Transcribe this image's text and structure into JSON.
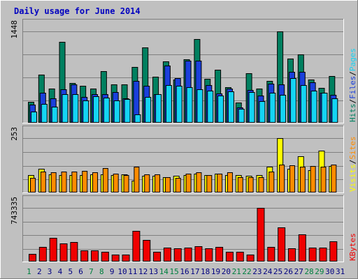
{
  "chart_data": {
    "type": "bar",
    "title": "Daily usage for June 2014",
    "colors": {
      "background": "#c0c0c0",
      "hits": "#008060",
      "files": "#1a3fdc",
      "pages": "#14d4f4",
      "visits": "#ffff00",
      "sites": "#ff8c00",
      "kbytes": "#f00000",
      "weekend_day": "#008040",
      "weekday_day": "#000080",
      "title": "#0000c0"
    },
    "categories": [
      "1",
      "2",
      "3",
      "4",
      "5",
      "6",
      "7",
      "8",
      "9",
      "10",
      "11",
      "12",
      "13",
      "14",
      "15",
      "16",
      "17",
      "18",
      "19",
      "20",
      "21",
      "22",
      "23",
      "24",
      "25",
      "26",
      "27",
      "28",
      "29",
      "30",
      "31"
    ],
    "weekend_days": [
      "1",
      "7",
      "8",
      "14",
      "15",
      "21",
      "22",
      "28",
      "29"
    ],
    "panels": [
      {
        "id": "hits-files-pages",
        "max_label": "1448",
        "ylim": [
          0,
          1448
        ],
        "legend": [
          {
            "text": "Hits",
            "color": "#008060"
          },
          {
            "text": "/",
            "color": "#000000"
          },
          {
            "text": "Files",
            "color": "#1a3fdc"
          },
          {
            "text": "/",
            "color": "#000000"
          },
          {
            "text": "Pages",
            "color": "#14d4f4"
          }
        ],
        "series": [
          {
            "name": "Hits",
            "values": [
              320,
              760,
              540,
              1280,
              620,
              580,
              540,
              810,
              600,
              600,
              880,
              1190,
              720,
              970,
              680,
              1000,
              1330,
              690,
              840,
              560,
              310,
              780,
              530,
              660,
              1448,
              1010,
              1080,
              680,
              550,
              740,
              null
            ]
          },
          {
            "name": "Files",
            "values": [
              280,
              470,
              380,
              520,
              600,
              400,
              450,
              440,
              480,
              380,
              660,
              580,
              450,
              900,
              700,
              980,
              980,
              590,
              460,
              530,
              230,
              510,
              420,
              610,
              600,
              800,
              800,
              630,
              470,
              430,
              null
            ]
          },
          {
            "name": "Pages",
            "values": [
              170,
              290,
              250,
              450,
              440,
              350,
              410,
              390,
              350,
              370,
              120,
              400,
              440,
              590,
              580,
              560,
              520,
              500,
              420,
              490,
              210,
              480,
              330,
              470,
              430,
              700,
              590,
              500,
              470,
              380,
              null
            ]
          }
        ]
      },
      {
        "id": "visits-sites",
        "max_label": "253",
        "ylim": [
          0,
          253
        ],
        "legend": [
          {
            "text": "Visits",
            "color": "#ffff00"
          },
          {
            "text": "/",
            "color": "#000000"
          },
          {
            "text": "Sites",
            "color": "#ff8c00"
          }
        ],
        "series": [
          {
            "name": "Visits",
            "values": [
              78,
              108,
              83,
              80,
              78,
              80,
              83,
              83,
              80,
              83,
              51,
              75,
              75,
              69,
              75,
              80,
              85,
              80,
              85,
              80,
              78,
              75,
              78,
              118,
              253,
              107,
              168,
              103,
              195,
              120,
              null
            ]
          },
          {
            "name": "Sites",
            "values": [
              66,
              95,
              92,
              94,
              94,
              97,
              93,
              113,
              85,
              80,
              117,
              81,
              81,
              69,
              66,
              85,
              92,
              80,
              85,
              92,
              69,
              70,
              70,
              95,
              128,
              124,
              118,
              120,
              118,
              128,
              null
            ]
          }
        ]
      },
      {
        "id": "kbytes",
        "max_label": "743335",
        "ylim": [
          0,
          743335
        ],
        "legend": [
          {
            "text": "KBytes",
            "color": "#f00000"
          }
        ],
        "series": [
          {
            "name": "KBytes",
            "values": [
              95000,
              196000,
              322000,
              247000,
              265000,
              150000,
              145000,
              125000,
              90000,
              85000,
              425000,
              290000,
              129000,
              185000,
              180000,
              189000,
              207000,
              179000,
              197000,
              129000,
              129000,
              84000,
              743335,
              197000,
              470000,
              175000,
              376000,
              184000,
              189000,
              269000,
              null
            ]
          }
        ]
      }
    ]
  }
}
